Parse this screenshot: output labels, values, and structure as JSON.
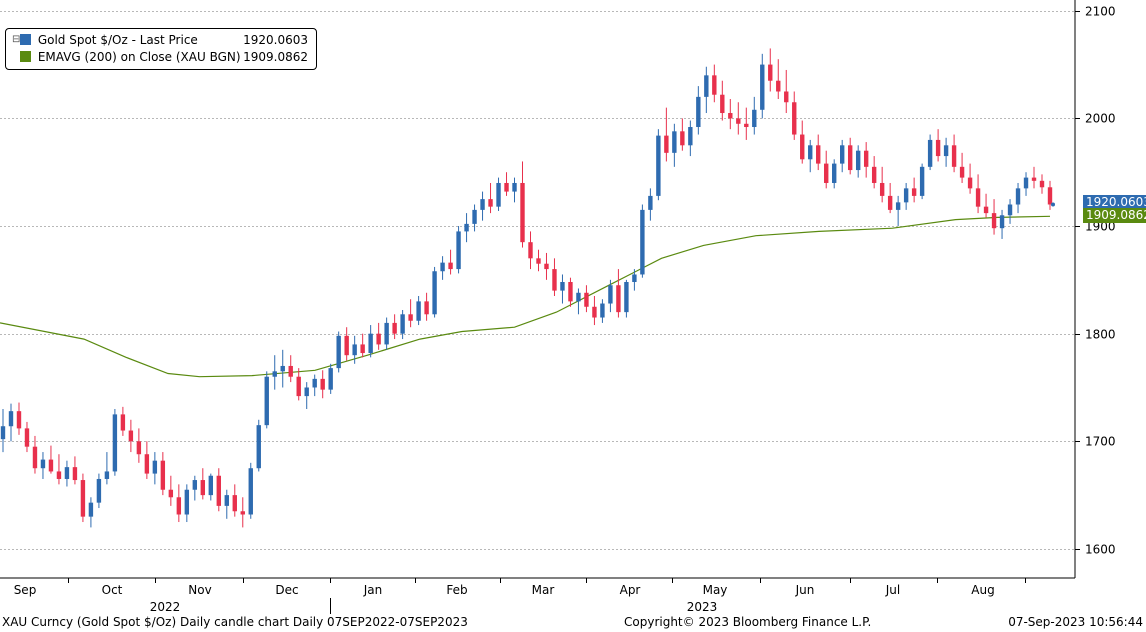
{
  "chart_data": {
    "type": "candlestick",
    "title": "Gold Spot $/Oz",
    "frequency": "Daily",
    "range": "07SEP2022-07SEP2023",
    "y_axis": {
      "ticks": [
        1600,
        1700,
        1800,
        1900,
        2000,
        2100
      ],
      "ylim": [
        1573,
        2110
      ],
      "position": "right",
      "grid": true
    },
    "x_axis": {
      "months": [
        "Sep",
        "Oct",
        "Nov",
        "Dec",
        "Jan",
        "Feb",
        "Mar",
        "Apr",
        "May",
        "Jun",
        "Jul",
        "Aug"
      ],
      "years": [
        "2022",
        "2023"
      ]
    },
    "series": [
      {
        "name": "Gold Spot $/Oz - Last Price",
        "legend_value": "1920.0603",
        "last_label": "1920.0603",
        "color": "#2e6bb0",
        "down_color": "#e8304c",
        "ohlc_approx": [
          [
            1702,
            1730,
            1690,
            1714
          ],
          [
            1714,
            1735,
            1700,
            1728
          ],
          [
            1728,
            1736,
            1706,
            1712
          ],
          [
            1712,
            1718,
            1690,
            1695
          ],
          [
            1695,
            1705,
            1670,
            1675
          ],
          [
            1675,
            1690,
            1665,
            1683
          ],
          [
            1683,
            1696,
            1670,
            1672
          ],
          [
            1672,
            1688,
            1660,
            1665
          ],
          [
            1665,
            1682,
            1658,
            1676
          ],
          [
            1676,
            1686,
            1660,
            1664
          ],
          [
            1664,
            1670,
            1625,
            1630
          ],
          [
            1630,
            1648,
            1620,
            1643
          ],
          [
            1643,
            1670,
            1638,
            1665
          ],
          [
            1665,
            1690,
            1660,
            1672
          ],
          [
            1672,
            1730,
            1668,
            1725
          ],
          [
            1725,
            1732,
            1705,
            1710
          ],
          [
            1710,
            1720,
            1690,
            1700
          ],
          [
            1700,
            1712,
            1680,
            1688
          ],
          [
            1688,
            1700,
            1665,
            1670
          ],
          [
            1670,
            1690,
            1660,
            1682
          ],
          [
            1682,
            1690,
            1650,
            1655
          ],
          [
            1655,
            1668,
            1640,
            1648
          ],
          [
            1648,
            1660,
            1625,
            1632
          ],
          [
            1632,
            1660,
            1625,
            1655
          ],
          [
            1655,
            1668,
            1645,
            1664
          ],
          [
            1664,
            1675,
            1646,
            1650
          ],
          [
            1650,
            1670,
            1645,
            1668
          ],
          [
            1668,
            1675,
            1635,
            1640
          ],
          [
            1640,
            1655,
            1628,
            1650
          ],
          [
            1650,
            1660,
            1630,
            1635
          ],
          [
            1635,
            1648,
            1620,
            1632
          ],
          [
            1632,
            1680,
            1628,
            1675
          ],
          [
            1675,
            1720,
            1672,
            1715
          ],
          [
            1715,
            1765,
            1712,
            1760
          ],
          [
            1760,
            1780,
            1748,
            1765
          ],
          [
            1765,
            1785,
            1750,
            1770
          ],
          [
            1770,
            1780,
            1755,
            1760
          ],
          [
            1760,
            1768,
            1738,
            1742
          ],
          [
            1742,
            1755,
            1730,
            1750
          ],
          [
            1750,
            1762,
            1742,
            1758
          ],
          [
            1758,
            1766,
            1740,
            1748
          ],
          [
            1748,
            1772,
            1744,
            1768
          ],
          [
            1768,
            1802,
            1764,
            1798
          ],
          [
            1798,
            1806,
            1775,
            1780
          ],
          [
            1780,
            1798,
            1772,
            1790
          ],
          [
            1790,
            1800,
            1778,
            1782
          ],
          [
            1782,
            1808,
            1778,
            1800
          ],
          [
            1800,
            1810,
            1785,
            1790
          ],
          [
            1790,
            1815,
            1785,
            1810
          ],
          [
            1810,
            1818,
            1795,
            1800
          ],
          [
            1800,
            1822,
            1795,
            1818
          ],
          [
            1818,
            1832,
            1806,
            1812
          ],
          [
            1812,
            1835,
            1808,
            1830
          ],
          [
            1830,
            1838,
            1812,
            1818
          ],
          [
            1818,
            1862,
            1815,
            1858
          ],
          [
            1858,
            1872,
            1850,
            1866
          ],
          [
            1866,
            1878,
            1855,
            1860
          ],
          [
            1860,
            1900,
            1856,
            1895
          ],
          [
            1895,
            1912,
            1885,
            1902
          ],
          [
            1902,
            1920,
            1895,
            1915
          ],
          [
            1915,
            1932,
            1905,
            1925
          ],
          [
            1925,
            1940,
            1912,
            1918
          ],
          [
            1918,
            1945,
            1914,
            1940
          ],
          [
            1940,
            1950,
            1928,
            1932
          ],
          [
            1932,
            1945,
            1922,
            1940
          ],
          [
            1940,
            1960,
            1880,
            1885
          ],
          [
            1885,
            1895,
            1860,
            1870
          ],
          [
            1870,
            1878,
            1858,
            1865
          ],
          [
            1865,
            1875,
            1850,
            1860
          ],
          [
            1860,
            1870,
            1835,
            1840
          ],
          [
            1840,
            1855,
            1828,
            1848
          ],
          [
            1848,
            1852,
            1825,
            1830
          ],
          [
            1830,
            1842,
            1818,
            1838
          ],
          [
            1838,
            1845,
            1820,
            1825
          ],
          [
            1825,
            1835,
            1808,
            1815
          ],
          [
            1815,
            1832,
            1810,
            1828
          ],
          [
            1828,
            1850,
            1820,
            1845
          ],
          [
            1845,
            1860,
            1815,
            1820
          ],
          [
            1820,
            1850,
            1815,
            1848
          ],
          [
            1848,
            1860,
            1840,
            1855
          ],
          [
            1855,
            1920,
            1852,
            1915
          ],
          [
            1915,
            1935,
            1905,
            1928
          ],
          [
            1928,
            1990,
            1924,
            1984
          ],
          [
            1984,
            2010,
            1960,
            1968
          ],
          [
            1968,
            1995,
            1955,
            1988
          ],
          [
            1988,
            2000,
            1970,
            1975
          ],
          [
            1975,
            1998,
            1965,
            1992
          ],
          [
            1992,
            2030,
            1985,
            2020
          ],
          [
            2020,
            2048,
            2005,
            2040
          ],
          [
            2040,
            2050,
            2015,
            2022
          ],
          [
            2022,
            2035,
            1998,
            2005
          ],
          [
            2005,
            2018,
            1990,
            2000
          ],
          [
            2000,
            2015,
            1985,
            1995
          ],
          [
            1995,
            2010,
            1980,
            1992
          ],
          [
            1992,
            2020,
            1985,
            2008
          ],
          [
            2008,
            2060,
            2000,
            2050
          ],
          [
            2050,
            2065,
            2025,
            2035
          ],
          [
            2035,
            2055,
            2018,
            2025
          ],
          [
            2025,
            2045,
            2005,
            2015
          ],
          [
            2015,
            2025,
            1980,
            1985
          ],
          [
            1985,
            1998,
            1958,
            1962
          ],
          [
            1962,
            1980,
            1950,
            1975
          ],
          [
            1975,
            1985,
            1952,
            1958
          ],
          [
            1958,
            1970,
            1935,
            1940
          ],
          [
            1940,
            1962,
            1935,
            1958
          ],
          [
            1958,
            1980,
            1950,
            1975
          ],
          [
            1975,
            1982,
            1948,
            1952
          ],
          [
            1952,
            1975,
            1945,
            1970
          ],
          [
            1970,
            1978,
            1945,
            1955
          ],
          [
            1955,
            1965,
            1935,
            1940
          ],
          [
            1940,
            1955,
            1922,
            1928
          ],
          [
            1928,
            1940,
            1912,
            1915
          ],
          [
            1915,
            1928,
            1900,
            1922
          ],
          [
            1922,
            1940,
            1915,
            1935
          ],
          [
            1935,
            1945,
            1922,
            1928
          ],
          [
            1928,
            1958,
            1925,
            1955
          ],
          [
            1955,
            1985,
            1952,
            1980
          ],
          [
            1980,
            1990,
            1960,
            1965
          ],
          [
            1965,
            1982,
            1955,
            1975
          ],
          [
            1975,
            1985,
            1950,
            1955
          ],
          [
            1955,
            1968,
            1940,
            1945
          ],
          [
            1945,
            1958,
            1930,
            1935
          ],
          [
            1935,
            1948,
            1912,
            1918
          ],
          [
            1918,
            1930,
            1908,
            1912
          ],
          [
            1912,
            1925,
            1892,
            1898
          ],
          [
            1898,
            1915,
            1888,
            1910
          ],
          [
            1910,
            1925,
            1902,
            1920
          ],
          [
            1920,
            1940,
            1912,
            1935
          ],
          [
            1935,
            1950,
            1928,
            1945
          ],
          [
            1945,
            1955,
            1935,
            1942
          ],
          [
            1942,
            1948,
            1930,
            1936
          ],
          [
            1936,
            1942,
            1915,
            1920
          ]
        ]
      },
      {
        "name": "EMAVG (200)  on Close (XAU BGN)",
        "legend_value": "1909.0862",
        "last_label": "1909.0862",
        "color": "#5a8a10",
        "points_approx": [
          [
            0,
            1810
          ],
          [
            0.08,
            1795
          ],
          [
            0.12,
            1778
          ],
          [
            0.16,
            1763
          ],
          [
            0.19,
            1760
          ],
          [
            0.24,
            1761
          ],
          [
            0.3,
            1766
          ],
          [
            0.35,
            1780
          ],
          [
            0.4,
            1795
          ],
          [
            0.44,
            1802
          ],
          [
            0.49,
            1806
          ],
          [
            0.53,
            1820
          ],
          [
            0.58,
            1845
          ],
          [
            0.63,
            1870
          ],
          [
            0.67,
            1882
          ],
          [
            0.72,
            1891
          ],
          [
            0.78,
            1895
          ],
          [
            0.85,
            1898
          ],
          [
            0.91,
            1906
          ],
          [
            0.95,
            1908
          ],
          [
            1.0,
            1909
          ]
        ]
      }
    ],
    "legend_position": "top-left"
  },
  "footer": {
    "description": "XAU Curncy (Gold Spot  $/Oz) Daily candle chart  Daily 07SEP2022-07SEP2023",
    "copyright": "Copyright© 2023 Bloomberg Finance L.P.",
    "timestamp": "07-Sep-2023 10:56:44"
  },
  "legend": {
    "tree_glyph": "⊟"
  }
}
